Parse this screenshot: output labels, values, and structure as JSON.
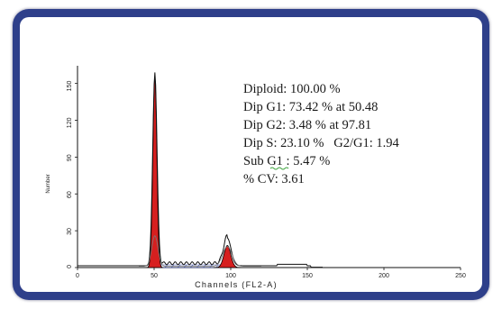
{
  "chart_data": {
    "type": "histogram",
    "xlabel": "Channels (FL2-A)",
    "ylabel": "Number",
    "xlim": [
      0,
      250
    ],
    "ylim": [
      0,
      160
    ],
    "x_ticks": [
      "0",
      "50",
      "100",
      "150",
      "200",
      "250"
    ],
    "y_ticks": [
      "0",
      "30",
      "60",
      "90",
      "120",
      "150"
    ],
    "peaks": [
      {
        "name": "Dip G1",
        "channel": 50.48,
        "height": 155
      },
      {
        "name": "Dip G2",
        "channel": 97.81,
        "height": 18
      }
    ],
    "stats": [
      "Diploid: 100.00 %",
      "Dip G1: 73.42 % at 50.48",
      "Dip G2: 3.48 % at 97.81",
      "Dip S: 23.10 %   G2/G1: 1.94",
      "Sub G1 : 5.47 %",
      "% CV: 3.61"
    ],
    "colors": {
      "g1_fill": "#d61f1f",
      "g2_fill": "#d61f1f",
      "s_phase_hatch": "#3b4fb0",
      "frame": "#2e3f8a"
    }
  }
}
